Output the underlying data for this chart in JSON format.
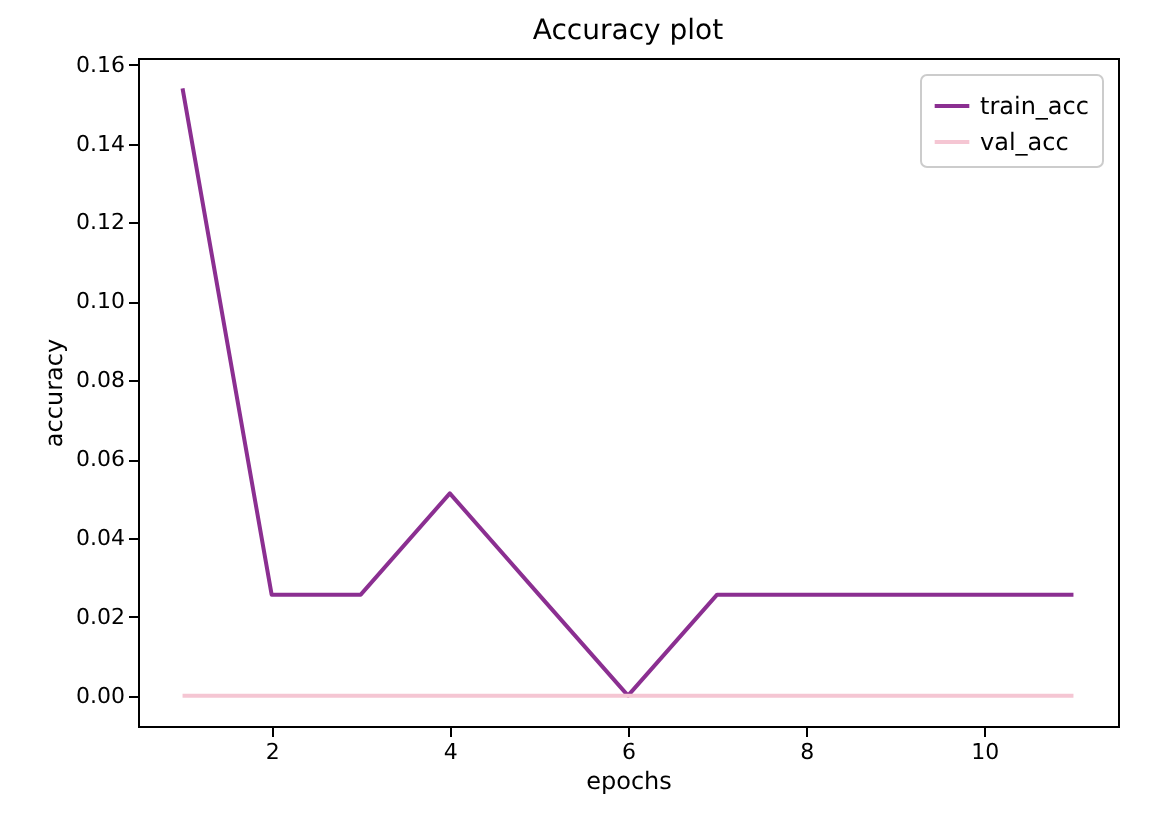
{
  "chart_data": {
    "type": "line",
    "title": "Accuracy plot",
    "xlabel": "epochs",
    "ylabel": "accuracy",
    "x": [
      1,
      2,
      3,
      4,
      5,
      6,
      7,
      8,
      9,
      10,
      11
    ],
    "series": [
      {
        "name": "train_acc",
        "color": "#8b2f91",
        "values": [
          0.154,
          0.0256,
          0.0256,
          0.0513,
          0.0256,
          0,
          0.0256,
          0.0256,
          0.0256,
          0.0256,
          0.0256
        ]
      },
      {
        "name": "val_acc",
        "color": "#f5c6d3",
        "values": [
          0,
          0,
          0,
          0,
          0,
          0,
          0,
          0,
          0,
          0,
          0
        ]
      }
    ],
    "xlim": [
      0.5,
      11.5
    ],
    "xticks": [
      2,
      4,
      6,
      8,
      10
    ],
    "ylim": [
      -0.0077,
      0.1617
    ],
    "yticks": [
      {
        "value": 0,
        "label": "0.00"
      },
      0.02,
      0.04,
      0.06,
      0.08,
      {
        "value": 0.1,
        "label": "0.10"
      },
      0.12,
      0.14,
      0.16
    ],
    "legend": "top right",
    "grid": false,
    "marker": "none",
    "line_style": "solid"
  }
}
